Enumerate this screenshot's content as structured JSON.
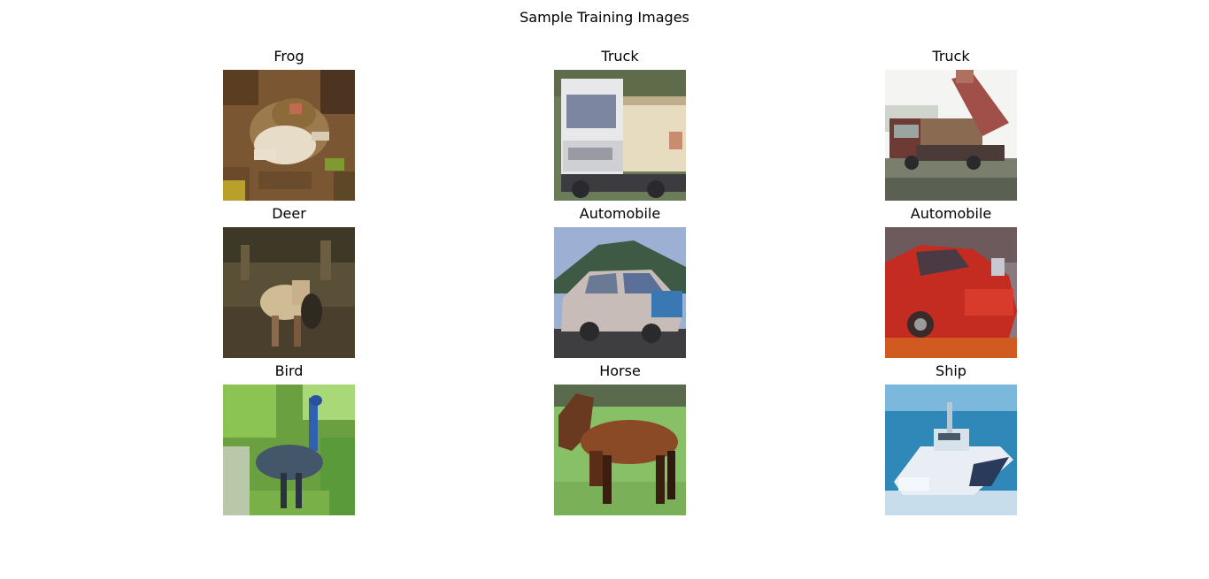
{
  "chart_data": {
    "type": "image_grid",
    "title": "Sample Training Images",
    "rows": 3,
    "cols": 3,
    "panels": [
      {
        "label": "Frog",
        "icon": "frog-image"
      },
      {
        "label": "Truck",
        "icon": "truck-image"
      },
      {
        "label": "Truck",
        "icon": "dump-truck-image"
      },
      {
        "label": "Deer",
        "icon": "deer-image"
      },
      {
        "label": "Automobile",
        "icon": "car-image"
      },
      {
        "label": "Automobile",
        "icon": "red-car-image"
      },
      {
        "label": "Bird",
        "icon": "bird-image"
      },
      {
        "label": "Horse",
        "icon": "horse-image"
      },
      {
        "label": "Ship",
        "icon": "ship-image"
      }
    ]
  }
}
